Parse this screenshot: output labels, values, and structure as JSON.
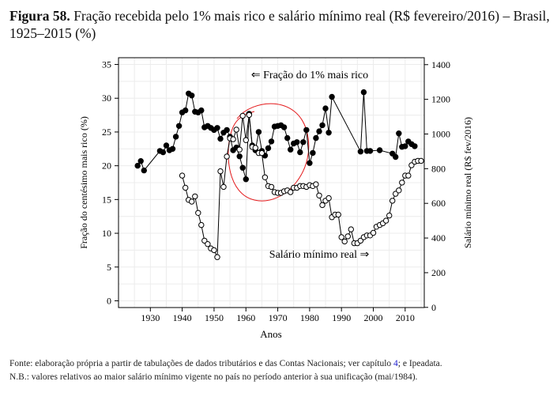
{
  "figure": {
    "label": "Figura 58.",
    "title": "Fração recebida pelo 1% mais rico e salário mínimo real (R$ fevereiro/2016) – Brasil, 1925–2015 (%)"
  },
  "footer": {
    "source_pre": "Fonte: elaboração própria a partir de tabulações de dados tributários e das Contas Nacionais; ver capítulo ",
    "source_link": "4",
    "source_post": "; e Ipeadata.",
    "note": "N.B.: valores relativos ao maior salário mínimo vigente no país no período anterior à sua unificação (mai/1984)."
  },
  "chart_data": {
    "type": "line",
    "xlabel": "Anos",
    "ylabel_left": "Fração do centésimo mais rico (%)",
    "ylabel_right": "Salário mínimo real (R$ fev/2016)",
    "xlim": [
      1920,
      2016
    ],
    "ylim_left": [
      -1,
      36
    ],
    "ylim_right": [
      -1,
      1440
    ],
    "x_ticks": [
      1930,
      1940,
      1950,
      1960,
      1970,
      1980,
      1990,
      2000,
      2010
    ],
    "y_ticks_left": [
      0,
      5,
      10,
      15,
      20,
      25,
      30,
      35
    ],
    "y_ticks_right": [
      0,
      200,
      400,
      600,
      800,
      1000,
      1200,
      1400
    ],
    "grid": true,
    "annotations": {
      "top": "⇐ Fração do 1% mais rico",
      "bottom": "Salário mínimo real ⇒"
    },
    "series": [
      {
        "axis": "left",
        "marker": "filled-circle",
        "segments": [
          [
            [
              1926,
              20.0
            ],
            [
              1927,
              20.7
            ],
            [
              1928,
              19.3
            ],
            [
              1933,
              22.2
            ],
            [
              1934,
              22.0
            ],
            [
              1935,
              23.0
            ],
            [
              1936,
              22.3
            ],
            [
              1937,
              22.5
            ],
            [
              1938,
              24.3
            ],
            [
              1939,
              25.9
            ],
            [
              1940,
              27.9
            ],
            [
              1941,
              28.2
            ],
            [
              1942,
              30.7
            ],
            [
              1943,
              30.4
            ],
            [
              1944,
              28.0
            ],
            [
              1945,
              27.9
            ],
            [
              1946,
              28.2
            ],
            [
              1947,
              25.7
            ],
            [
              1948,
              25.9
            ],
            [
              1949,
              25.6
            ],
            [
              1950,
              25.3
            ],
            [
              1951,
              25.6
            ],
            [
              1952,
              24.0
            ],
            [
              1953,
              24.9
            ],
            [
              1954,
              25.3
            ],
            [
              1955,
              24.3
            ],
            [
              1956,
              22.3
            ],
            [
              1957,
              22.7
            ],
            [
              1958,
              21.4
            ],
            [
              1959,
              19.7
            ],
            [
              1960,
              18.0
            ],
            [
              1961,
              27.7
            ],
            [
              1962,
              23.0
            ],
            [
              1963,
              22.3
            ],
            [
              1964,
              25.0
            ],
            [
              1965,
              22.2
            ],
            [
              1966,
              21.5
            ],
            [
              1967,
              22.6
            ],
            [
              1968,
              23.6
            ],
            [
              1969,
              25.8
            ],
            [
              1970,
              25.9
            ],
            [
              1971,
              26.0
            ],
            [
              1972,
              25.7
            ],
            [
              1973,
              24.1
            ],
            [
              1974,
              22.4
            ],
            [
              1975,
              23.3
            ],
            [
              1976,
              23.5
            ],
            [
              1977,
              22.0
            ],
            [
              1978,
              23.5
            ],
            [
              1979,
              25.3
            ],
            [
              1980,
              20.4
            ],
            [
              1981,
              21.9
            ],
            [
              1982,
              24.1
            ],
            [
              1983,
              25.1
            ],
            [
              1984,
              26.0
            ],
            [
              1985,
              28.5
            ],
            [
              1986,
              24.9
            ],
            [
              1987,
              30.2
            ],
            [
              1996,
              22.1
            ],
            [
              1997,
              30.9
            ],
            [
              1998,
              22.2
            ],
            [
              1999,
              22.2
            ],
            [
              2002,
              22.3
            ],
            [
              2006,
              21.8
            ],
            [
              2007,
              21.3
            ],
            [
              2008,
              24.8
            ],
            [
              2009,
              22.8
            ],
            [
              2010,
              22.9
            ],
            [
              2011,
              23.6
            ],
            [
              2012,
              23.2
            ],
            [
              2013,
              22.9
            ]
          ]
        ]
      },
      {
        "axis": "right",
        "marker": "open-circle",
        "segments": [
          [
            [
              1940,
              760
            ],
            [
              1941,
              690
            ],
            [
              1942,
              620
            ],
            [
              1943,
              610
            ],
            [
              1944,
              640
            ],
            [
              1945,
              545
            ],
            [
              1946,
              475
            ],
            [
              1947,
              385
            ],
            [
              1948,
              365
            ],
            [
              1949,
              340
            ],
            [
              1950,
              330
            ],
            [
              1951,
              290
            ],
            [
              1952,
              785
            ],
            [
              1953,
              695
            ],
            [
              1954,
              870
            ],
            [
              1955,
              975
            ],
            [
              1956,
              970
            ],
            [
              1957,
              1025
            ],
            [
              1958,
              910
            ],
            [
              1959,
              1105
            ],
            [
              1960,
              965
            ],
            [
              1961,
              1110
            ],
            [
              1962,
              925
            ],
            [
              1963,
              920
            ],
            [
              1964,
              890
            ],
            [
              1965,
              890
            ],
            [
              1966,
              750
            ],
            [
              1967,
              700
            ],
            [
              1968,
              695
            ],
            [
              1969,
              665
            ],
            [
              1970,
              660
            ],
            [
              1971,
              660
            ],
            [
              1972,
              670
            ],
            [
              1973,
              675
            ],
            [
              1974,
              665
            ],
            [
              1975,
              690
            ],
            [
              1976,
              690
            ],
            [
              1977,
              700
            ],
            [
              1978,
              700
            ],
            [
              1979,
              695
            ],
            [
              1980,
              705
            ],
            [
              1981,
              700
            ],
            [
              1982,
              710
            ],
            [
              1983,
              645
            ],
            [
              1984,
              590
            ],
            [
              1985,
              615
            ],
            [
              1986,
              630
            ],
            [
              1987,
              520
            ],
            [
              1988,
              535
            ],
            [
              1989,
              535
            ],
            [
              1990,
              405
            ],
            [
              1991,
              380
            ],
            [
              1992,
              410
            ],
            [
              1993,
              450
            ],
            [
              1994,
              370
            ],
            [
              1995,
              370
            ],
            [
              1996,
              385
            ],
            [
              1997,
              405
            ],
            [
              1998,
              415
            ],
            [
              1999,
              415
            ],
            [
              2000,
              430
            ],
            [
              2001,
              465
            ],
            [
              2002,
              475
            ],
            [
              2003,
              485
            ],
            [
              2004,
              500
            ],
            [
              2005,
              530
            ],
            [
              2006,
              615
            ],
            [
              2007,
              655
            ],
            [
              2008,
              675
            ],
            [
              2009,
              720
            ],
            [
              2010,
              760
            ],
            [
              2011,
              760
            ],
            [
              2012,
              820
            ],
            [
              2013,
              840
            ],
            [
              2014,
              845
            ],
            [
              2015,
              845
            ]
          ]
        ]
      }
    ],
    "overlay": {
      "color": "#e41a1c",
      "shape": "hand-drawn-ellipse"
    }
  }
}
